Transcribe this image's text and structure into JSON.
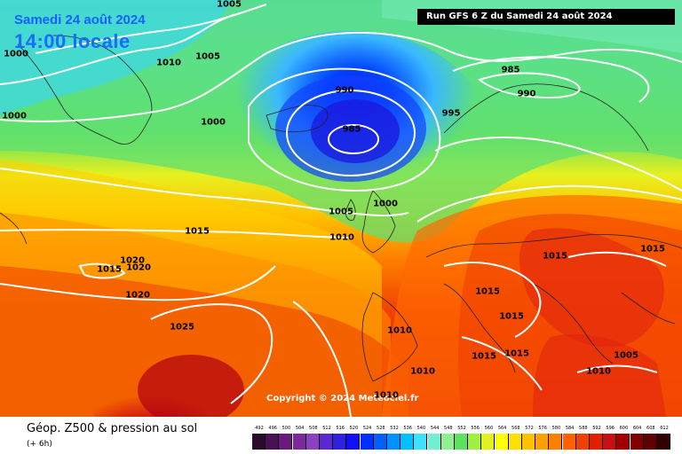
{
  "header": {
    "date": "Samedi 24 août 2024",
    "time": "14:00 locale",
    "run": "Run GFS 6 Z du Samedi 24 août 2024"
  },
  "copyright": "Copyright © 2024 Meteociel.fr",
  "footer": {
    "title": "Géop. Z500 & pression au sol",
    "subtitle": "(+ 6h)"
  },
  "isobar_labels": [
    {
      "id": "a1",
      "text": "1005"
    },
    {
      "id": "a2",
      "text": "1000"
    },
    {
      "id": "a3",
      "text": "1010"
    },
    {
      "id": "a4",
      "text": "1005"
    },
    {
      "id": "a5",
      "text": "1000"
    },
    {
      "id": "a6",
      "text": "1000"
    },
    {
      "id": "a7",
      "text": "990"
    },
    {
      "id": "a8",
      "text": "985"
    },
    {
      "id": "a9",
      "text": "995"
    },
    {
      "id": "a10",
      "text": "985"
    },
    {
      "id": "a11",
      "text": "990"
    },
    {
      "id": "a12",
      "text": "1005"
    },
    {
      "id": "a13",
      "text": "1000"
    },
    {
      "id": "a14",
      "text": "1010"
    },
    {
      "id": "a15",
      "text": "1015"
    },
    {
      "id": "a16",
      "text": "1015"
    },
    {
      "id": "a17",
      "text": "1020"
    },
    {
      "id": "a18",
      "text": "1020"
    },
    {
      "id": "a19",
      "text": "1020"
    },
    {
      "id": "a20",
      "text": "1025"
    },
    {
      "id": "a21",
      "text": "1010"
    },
    {
      "id": "a22",
      "text": "1010"
    },
    {
      "id": "a23",
      "text": "1015"
    },
    {
      "id": "a24",
      "text": "1015"
    },
    {
      "id": "a25",
      "text": "1015"
    },
    {
      "id": "a26",
      "text": "1015"
    },
    {
      "id": "a27",
      "text": "1015"
    },
    {
      "id": "a28",
      "text": "1015"
    },
    {
      "id": "a29",
      "text": "1010"
    },
    {
      "id": "a30",
      "text": "1005"
    },
    {
      "id": "a31",
      "text": "1010"
    }
  ],
  "scale": {
    "values": [
      "492",
      "496",
      "500",
      "504",
      "508",
      "512",
      "516",
      "520",
      "524",
      "528",
      "532",
      "536",
      "540",
      "544",
      "548",
      "552",
      "556",
      "560",
      "564",
      "568",
      "572",
      "576",
      "580",
      "584",
      "588",
      "592",
      "596",
      "600",
      "604",
      "608",
      "612"
    ],
    "colors": [
      "#2a0a2a",
      "#4a1055",
      "#6a1a7a",
      "#7a2a9a",
      "#8a40c0",
      "#5a2ad0",
      "#3020e0",
      "#1010f0",
      "#0030ff",
      "#0060ff",
      "#0090ff",
      "#00c0ff",
      "#40e0ff",
      "#70f0d0",
      "#90f090",
      "#60e060",
      "#a0f040",
      "#e0f020",
      "#ffff00",
      "#ffe000",
      "#ffc000",
      "#ffa000",
      "#ff8000",
      "#ff6000",
      "#f04000",
      "#e02000",
      "#c81010",
      "#a00000",
      "#800000",
      "#600000",
      "#300000"
    ]
  }
}
